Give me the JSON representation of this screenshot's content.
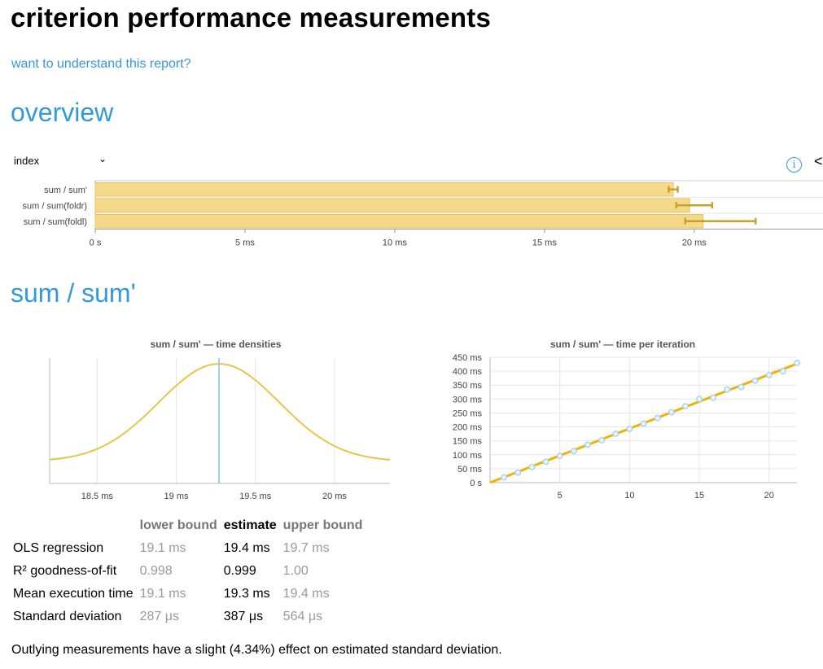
{
  "title": "criterion performance measurements",
  "help_link": "want to understand this report?",
  "overview": {
    "heading": "overview",
    "sort_select": {
      "value": "index"
    },
    "info_icon": "i",
    "back_icon": "<"
  },
  "colors": {
    "accent": "#3399dd",
    "bar_fill": "#f5d98a",
    "bar_stroke": "#e8c463",
    "error_bar": "#c8a22a",
    "density_line": "#e8c547",
    "estimate_line": "#9fd0e8",
    "regression_line": "#f0b400",
    "point": "#a8d4f0"
  },
  "chart_data": [
    {
      "type": "bar",
      "orientation": "horizontal",
      "categories": [
        "sum / sum'",
        "sum / sum(foldr)",
        "sum / sum(foldl)"
      ],
      "values": [
        19.3,
        19.85,
        20.3
      ],
      "error_bars": [
        [
          19.15,
          19.45
        ],
        [
          19.4,
          20.6
        ],
        [
          19.7,
          22.05
        ]
      ],
      "unit": "ms",
      "xlim": [
        0,
        24.3
      ],
      "xticks": [
        0,
        5,
        10,
        15,
        20
      ],
      "xtick_labels": [
        "0 s",
        "5 ms",
        "10 ms",
        "15 ms",
        "20 ms"
      ]
    },
    {
      "type": "line",
      "title": "sum / sum' — time densities",
      "xlim": [
        18.2,
        20.35
      ],
      "xticks": [
        18.5,
        19,
        19.5,
        20
      ],
      "xtick_labels": [
        "18.5 ms",
        "19 ms",
        "19.5 ms",
        "20 ms"
      ],
      "estimate": 19.27,
      "density_mean": 19.27,
      "density_sd": 0.38
    },
    {
      "type": "scatter",
      "title": "sum / sum' — time per iteration",
      "x": [
        1,
        2,
        3,
        4,
        5,
        6,
        7,
        8,
        9,
        10,
        11,
        12,
        13,
        14,
        15,
        16,
        17,
        18,
        19,
        20,
        21,
        22
      ],
      "y": [
        19,
        36,
        56,
        75,
        96,
        113,
        136,
        152,
        175,
        193,
        212,
        232,
        253,
        275,
        300,
        305,
        334,
        343,
        366,
        386,
        400,
        430
      ],
      "regression": {
        "slope": 19.4,
        "intercept": 0
      },
      "xlim": [
        0,
        22
      ],
      "ylim": [
        0,
        450
      ],
      "xticks": [
        5,
        10,
        15,
        20
      ],
      "xtick_labels": [
        "5",
        "10",
        "15",
        "20"
      ],
      "yticks": [
        0,
        50,
        100,
        150,
        200,
        250,
        300,
        350,
        400,
        450
      ],
      "ytick_labels": [
        "0 s",
        "50 ms",
        "100 ms",
        "150 ms",
        "200 ms",
        "250 ms",
        "300 ms",
        "350 ms",
        "400 ms",
        "450 ms"
      ]
    }
  ],
  "section": {
    "heading": "sum / sum'",
    "table": {
      "headers": [
        "lower bound",
        "estimate",
        "upper bound"
      ],
      "rows": [
        {
          "label": "OLS regression",
          "lower": "19.1 ms",
          "estimate": "19.4 ms",
          "upper": "19.7 ms"
        },
        {
          "label": "R² goodness-of-fit",
          "lower": "0.998",
          "estimate": "0.999",
          "upper": "1.00"
        },
        {
          "label": "Mean execution time",
          "lower": "19.1 ms",
          "estimate": "19.3 ms",
          "upper": "19.4 ms"
        },
        {
          "label": "Standard deviation",
          "lower": "287 μs",
          "estimate": "387 μs",
          "upper": "564 μs"
        }
      ]
    },
    "note": "Outlying measurements have a slight (4.34%) effect on estimated standard deviation."
  }
}
